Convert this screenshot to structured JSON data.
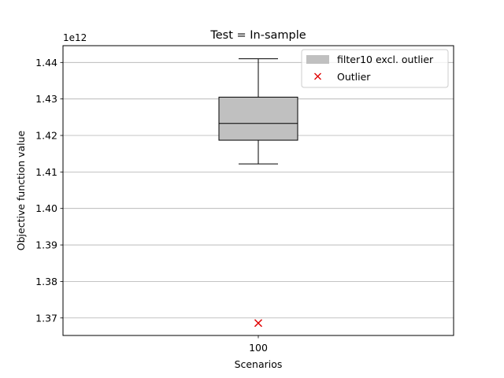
{
  "chart_data": {
    "type": "box",
    "title": "Test = In-sample",
    "xlabel": "Scenarios",
    "ylabel": "Objective function value",
    "offset_text": "1e12",
    "scale": 1000000000000.0,
    "categories": [
      "100"
    ],
    "ylim": [
      1.3652,
      1.4446
    ],
    "y_ticks": [
      1.37,
      1.38,
      1.39,
      1.4,
      1.41,
      1.42,
      1.43,
      1.44
    ],
    "y_tick_labels": [
      "1.37",
      "1.38",
      "1.39",
      "1.40",
      "1.41",
      "1.42",
      "1.43",
      "1.44"
    ],
    "grid": "y",
    "legend_position": "top-right",
    "box": {
      "name": "filter10 excl. outlier",
      "whisker_low": 1.4122,
      "q1": 1.4187,
      "median": 1.4233,
      "q3": 1.4305,
      "whisker_high": 1.441,
      "color": "#c0c0c0"
    },
    "outlier": {
      "name": "Outlier",
      "x": "100",
      "y": 1.3686,
      "color": "#e00000"
    }
  }
}
